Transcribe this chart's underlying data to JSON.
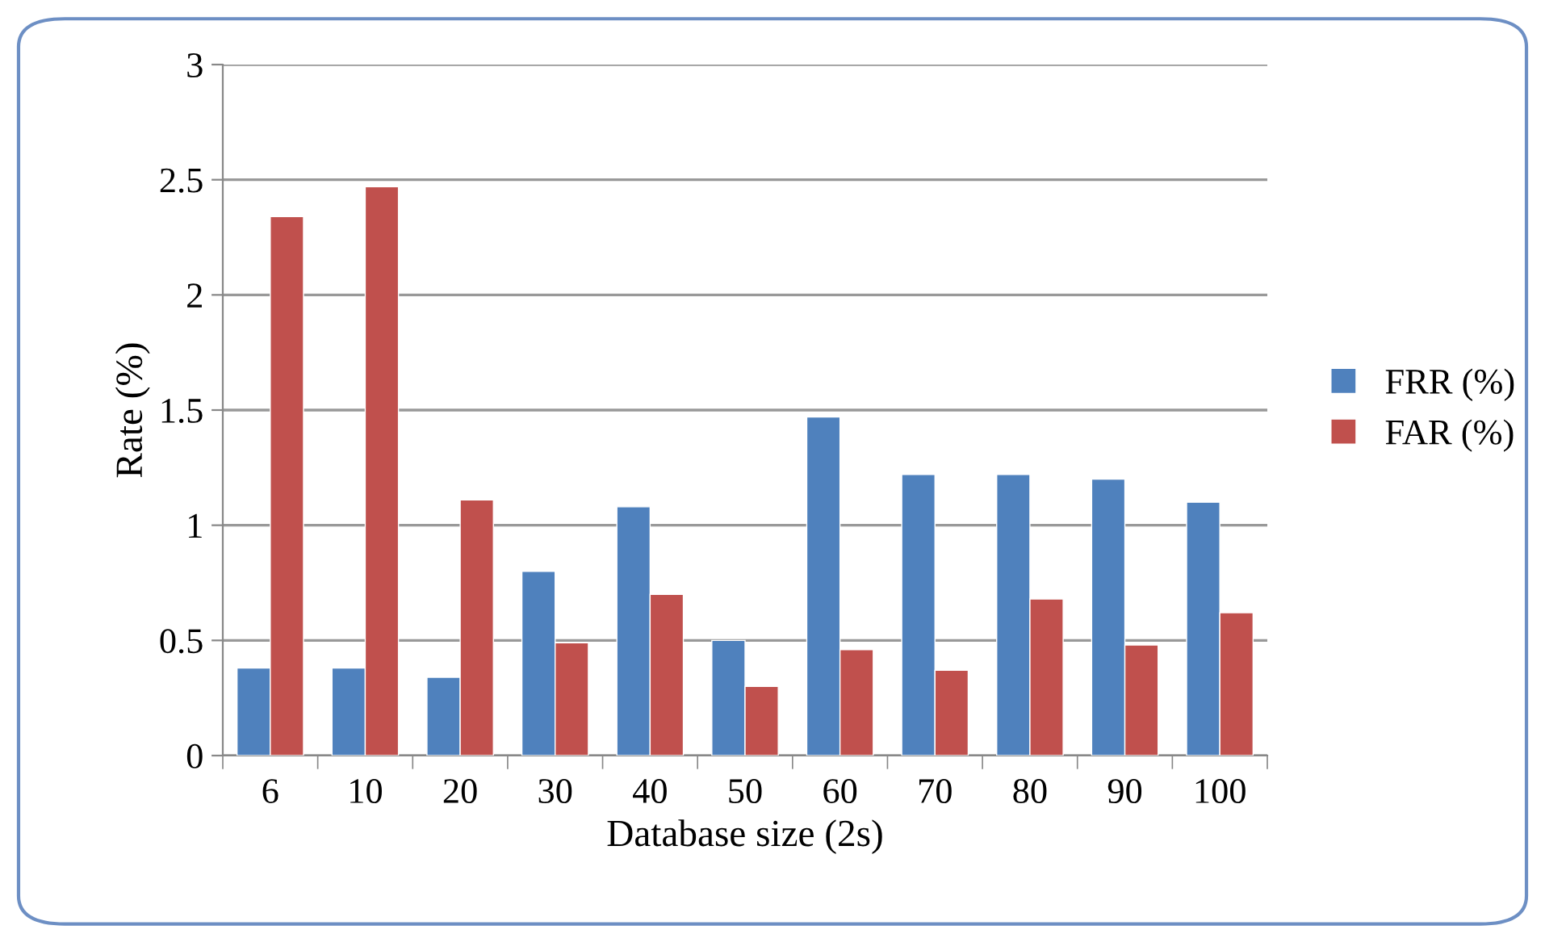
{
  "chart_data": {
    "type": "bar",
    "xlabel": "Database size (2s)",
    "ylabel": "Rate (%)",
    "categories": [
      "6",
      "10",
      "20",
      "30",
      "40",
      "50",
      "60",
      "70",
      "80",
      "90",
      "100"
    ],
    "series": [
      {
        "name": "FRR (%)",
        "color": "#4f81bd",
        "values": [
          0.38,
          0.38,
          0.34,
          0.8,
          1.08,
          0.5,
          1.47,
          1.22,
          1.22,
          1.2,
          1.1
        ]
      },
      {
        "name": "FAR (%)",
        "color": "#c0504d",
        "values": [
          2.34,
          2.47,
          1.11,
          0.49,
          0.7,
          0.3,
          0.46,
          0.37,
          0.68,
          0.48,
          0.62
        ]
      }
    ],
    "ylim": [
      0,
      3
    ],
    "yticks": [
      0,
      0.5,
      1,
      1.5,
      2,
      2.5,
      3
    ],
    "grid": "y",
    "legend": "right"
  }
}
